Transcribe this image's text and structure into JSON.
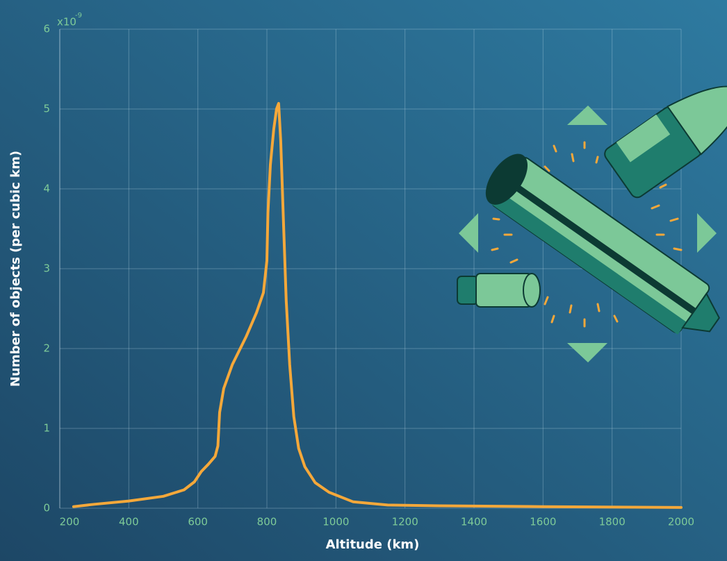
{
  "chart_data": {
    "type": "line",
    "x_label": "Altitude (km)",
    "y_label": "Number of objects (per cubic km)",
    "y_multiplier": "x10",
    "y_multiplier_exponent": "-9",
    "x": [
      240,
      300,
      400,
      500,
      560,
      590,
      610,
      630,
      650,
      658,
      663,
      675,
      700,
      740,
      770,
      790,
      800,
      803,
      810,
      820,
      828,
      834,
      840,
      848,
      856,
      866,
      878,
      892,
      910,
      940,
      980,
      1050,
      1150,
      1300,
      1600,
      2000
    ],
    "values": [
      0.02,
      0.05,
      0.09,
      0.15,
      0.23,
      0.33,
      0.46,
      0.55,
      0.65,
      0.78,
      1.2,
      1.5,
      1.8,
      2.15,
      2.45,
      2.7,
      3.1,
      3.7,
      4.3,
      4.75,
      5.0,
      5.07,
      4.6,
      3.6,
      2.6,
      1.8,
      1.15,
      0.75,
      0.52,
      0.32,
      0.2,
      0.08,
      0.04,
      0.03,
      0.02,
      0.01
    ],
    "color": "#f5a83a",
    "xlim": [
      200,
      2000
    ],
    "ylim": [
      0,
      6
    ],
    "xticks": [
      200,
      400,
      600,
      800,
      1000,
      1200,
      1400,
      1600,
      1800,
      2000
    ],
    "yticks": [
      0,
      1,
      2,
      3,
      4,
      5,
      6
    ],
    "grid": true
  }
}
